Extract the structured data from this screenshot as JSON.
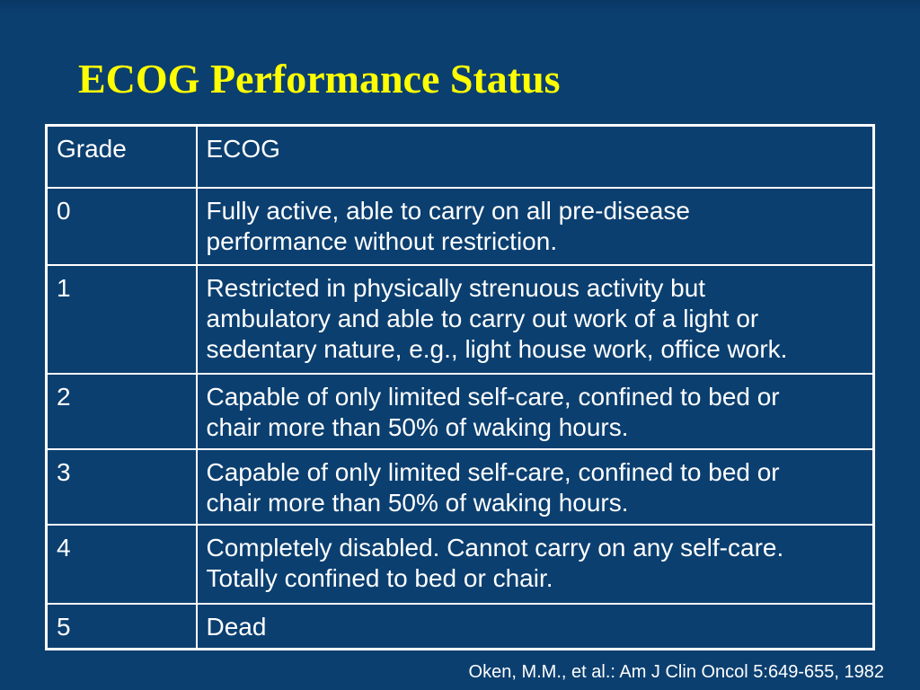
{
  "slide": {
    "title": "ECOG Performance Status",
    "citation": "Oken, M.M., et al.: Am J Clin Oncol 5:649-655, 1982"
  },
  "colors": {
    "background": "#0b3f70",
    "title_text": "#ffff00",
    "body_text": "#ffffff",
    "table_border": "#ffffff"
  },
  "table": {
    "headers": [
      "Grade",
      "ECOG"
    ],
    "rows": [
      {
        "grade": "0",
        "desc": "Fully active, able to carry on all pre-disease\nperformance without restriction."
      },
      {
        "grade": "1",
        "desc": "Restricted in physically strenuous activity but\nambulatory and able to carry out work of a light or\nsedentary nature, e.g., light house work, office work."
      },
      {
        "grade": "2",
        "desc": "Capable of only limited self-care, confined to bed or\nchair more than 50% of waking hours."
      },
      {
        "grade": "3",
        "desc": "Capable of only limited self-care, confined to bed or\nchair more than 50% of waking hours."
      },
      {
        "grade": "4",
        "desc": "Completely disabled. Cannot carry on any self-care.\nTotally confined to bed or chair."
      },
      {
        "grade": "5",
        "desc": "Dead"
      }
    ]
  }
}
